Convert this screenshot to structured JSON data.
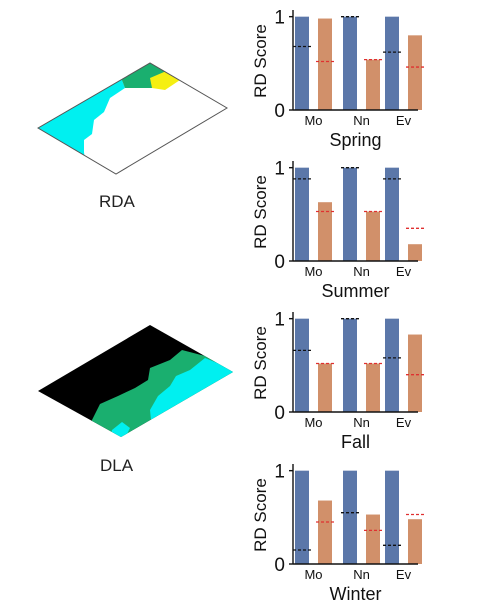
{
  "left_panels": [
    {
      "label": "RDA",
      "region_colors": {
        "background": "#ffffff",
        "cyan": "#00f0f0",
        "green": "#1aaf6f",
        "yellow": "#f5ef12"
      }
    },
    {
      "label": "DLA",
      "region_colors": {
        "background": "#000000",
        "cyan": "#00f0f0",
        "green": "#1aaf6f"
      }
    }
  ],
  "colors": {
    "blue_bar": "#5b77a9",
    "orange_bar": "#d1906a",
    "black_marker": "#111111",
    "red_marker": "#e03030",
    "axis": "#111111"
  },
  "chart_data": [
    {
      "type": "bar",
      "title": "Spring",
      "ylabel": "RD Score",
      "xlabel": "",
      "categories": [
        "Mo",
        "Nn",
        "Ev"
      ],
      "ylim": [
        0,
        1.05
      ],
      "yticks": [
        0,
        1
      ],
      "grid": false,
      "series": [
        {
          "values": [
            1.0,
            1.0,
            1.0
          ],
          "markers": [
            0.68,
            1.0,
            0.62
          ]
        },
        {
          "values": [
            0.98,
            0.54,
            0.8
          ],
          "markers": [
            0.52,
            0.54,
            0.46
          ]
        }
      ]
    },
    {
      "type": "bar",
      "title": "Summer",
      "ylabel": "RD Score",
      "xlabel": "",
      "categories": [
        "Mo",
        "Nn",
        "Ev"
      ],
      "ylim": [
        0,
        1.05
      ],
      "yticks": [
        0,
        1
      ],
      "grid": false,
      "series": [
        {
          "values": [
            1.0,
            1.0,
            1.0
          ],
          "markers": [
            0.88,
            1.0,
            0.88
          ]
        },
        {
          "values": [
            0.63,
            0.53,
            0.18
          ],
          "markers": [
            0.53,
            0.53,
            0.35
          ]
        }
      ]
    },
    {
      "type": "bar",
      "title": "Fall",
      "ylabel": "RD Score",
      "xlabel": "",
      "categories": [
        "Mo",
        "Nn",
        "Ev"
      ],
      "ylim": [
        0,
        1.05
      ],
      "yticks": [
        0,
        1
      ],
      "grid": false,
      "series": [
        {
          "values": [
            1.0,
            1.0,
            1.0
          ],
          "markers": [
            0.66,
            1.0,
            0.58
          ]
        },
        {
          "values": [
            0.52,
            0.52,
            0.83
          ],
          "markers": [
            0.52,
            0.52,
            0.4
          ]
        }
      ]
    },
    {
      "type": "bar",
      "title": "Winter",
      "ylabel": "RD Score",
      "xlabel": "",
      "categories": [
        "Mo",
        "Nn",
        "Ev"
      ],
      "ylim": [
        0,
        1.05
      ],
      "yticks": [
        0,
        1
      ],
      "grid": false,
      "series": [
        {
          "values": [
            1.0,
            1.0,
            1.0
          ],
          "markers": [
            0.15,
            0.55,
            0.2
          ]
        },
        {
          "values": [
            0.68,
            0.53,
            0.48
          ],
          "markers": [
            0.45,
            0.36,
            0.53
          ]
        }
      ]
    }
  ]
}
